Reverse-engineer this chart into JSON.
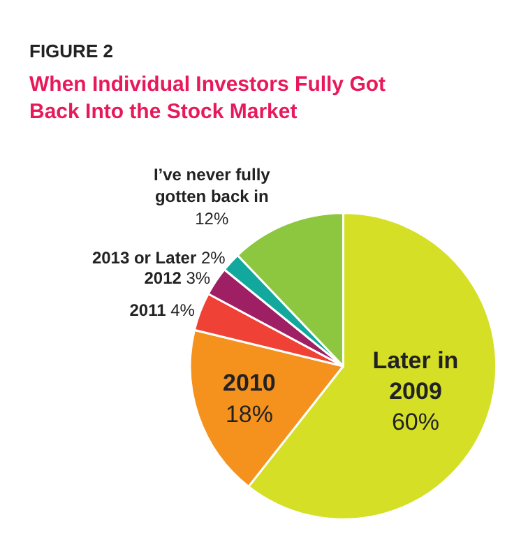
{
  "chart_data": {
    "type": "pie",
    "title": "FIGURE 2",
    "subtitle": "When Individual Investors Fully Got Back Into the Stock Market",
    "categories": [
      "Later in 2009",
      "2010",
      "2011",
      "2012",
      "2013 or Later",
      "I’ve never fully gotten back in"
    ],
    "values": [
      60,
      18,
      4,
      3,
      2,
      12
    ],
    "value_labels": [
      "60%",
      "18%",
      "4%",
      "3%",
      "2%",
      "12%"
    ],
    "colors": [
      "#d4df26",
      "#f5921e",
      "#ef4136",
      "#9e1f63",
      "#13a89e",
      "#8dc63f"
    ],
    "legend": false
  }
}
